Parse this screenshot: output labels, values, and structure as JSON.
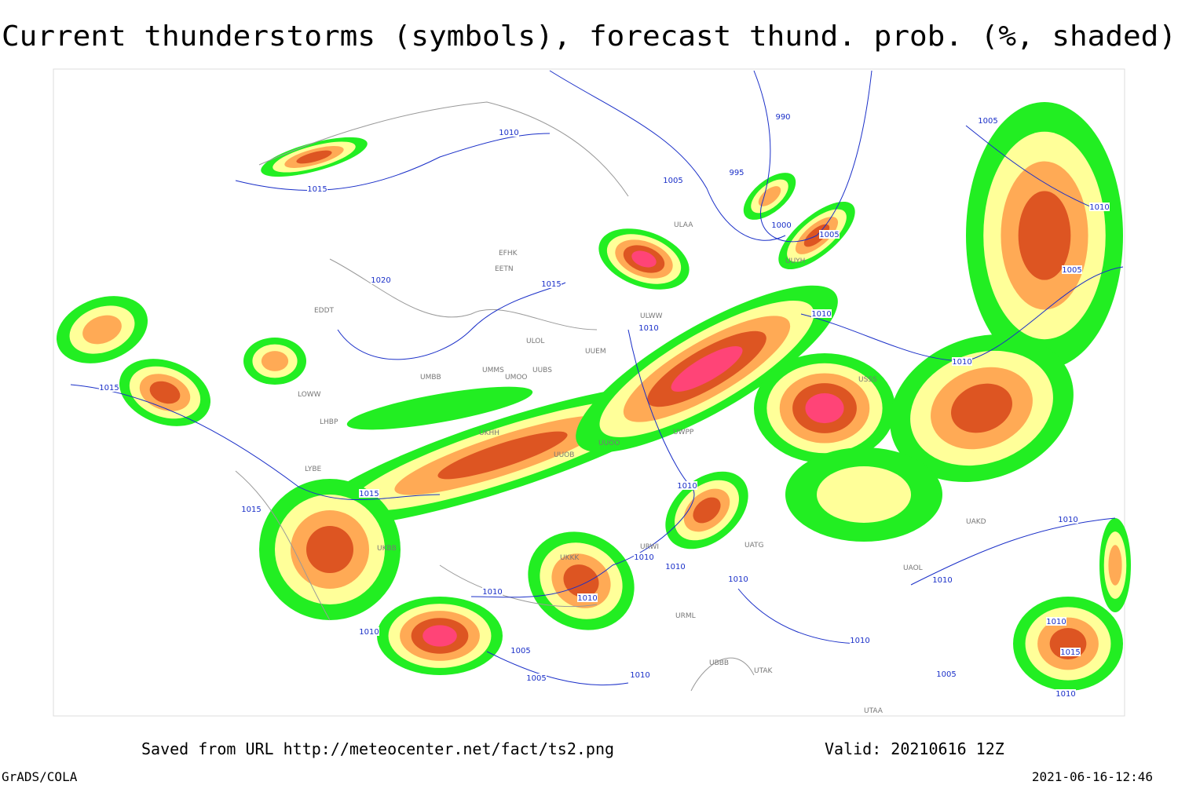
{
  "header": {
    "title": "Current thunderstorms (symbols), forecast thund. prob. (%, shaded)"
  },
  "map": {
    "isobar_labels": [
      990,
      995,
      1005,
      1005,
      1000,
      1010,
      1015,
      1020,
      1015,
      1010,
      1010,
      1015,
      1015,
      1015,
      1010,
      1010,
      1010,
      1010,
      1010,
      1010,
      1010,
      1005,
      1005,
      1010,
      1010,
      1010,
      1005,
      1010,
      1005,
      1010,
      1010,
      1010,
      1015,
      1010,
      1005
    ],
    "station_labels": [
      "EFHK",
      "EETN",
      "EDDT",
      "LOWW",
      "LHBP",
      "LYBE",
      "UMMS",
      "UMOO",
      "UUBS",
      "UMBB",
      "ULOL",
      "UUEM",
      "ULWW",
      "ULAA",
      "UUYH",
      "USSS",
      "UWPP",
      "UUOO",
      "UUOB",
      "UKHH",
      "UKBB",
      "URWI",
      "URML",
      "UBBB",
      "UTAK",
      "UTAA",
      "UATG",
      "UAKD",
      "UAOL",
      "UKKK"
    ]
  },
  "footer": {
    "source": "Saved from URL http://meteocenter.net/fact/ts2.png",
    "valid": "Valid: 20210616 12Z",
    "software": "GrADS/COLA",
    "timestamp": "2021-06-16-12:46"
  }
}
